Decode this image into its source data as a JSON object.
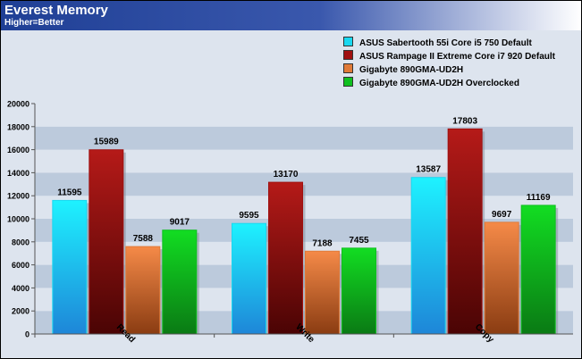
{
  "header": {
    "title": "Everest Memory",
    "subtitle": "Higher=Better"
  },
  "chart_data": {
    "type": "bar",
    "title": "Everest Memory",
    "subtitle": "Higher=Better",
    "xlabel": "",
    "ylabel": "",
    "categories": [
      "Read",
      "Write",
      "Copy"
    ],
    "ylim": [
      0,
      20000
    ],
    "y_ticks": [
      0,
      2000,
      4000,
      6000,
      8000,
      10000,
      12000,
      14000,
      16000,
      18000,
      20000
    ],
    "grid": "horizontal bands",
    "legend_position": "top-right",
    "series": [
      {
        "name": "ASUS Sabertooth 55i Core i5 750 Default",
        "color": "#19d8f0",
        "values": [
          11595,
          9595,
          13587
        ]
      },
      {
        "name": "ASUS Rampage II Extreme Core i7 920 Default",
        "color": "#a01010",
        "values": [
          15989,
          13170,
          17803
        ]
      },
      {
        "name": "Gigabyte 890GMA-UD2H",
        "color": "#e07a38",
        "values": [
          7588,
          7188,
          9697
        ]
      },
      {
        "name": "Gigabyte 890GMA-UD2H Overclocked",
        "color": "#10c020",
        "values": [
          9017,
          7455,
          11169
        ]
      }
    ]
  }
}
